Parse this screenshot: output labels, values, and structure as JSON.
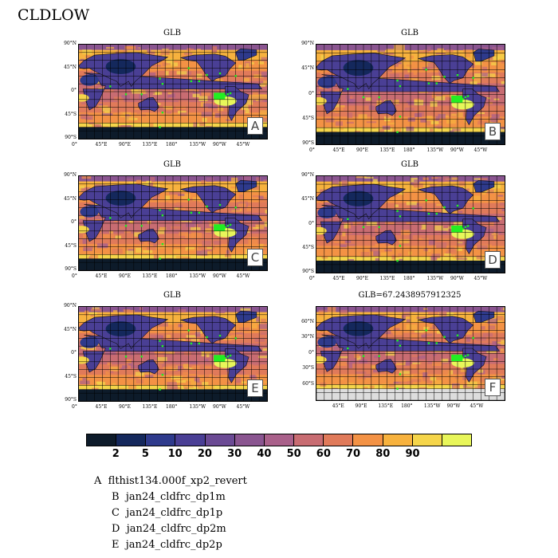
{
  "title": "CLDLOW",
  "panels": [
    {
      "id": "A",
      "title": "GLB",
      "letter": "A"
    },
    {
      "id": "B",
      "title": "GLB",
      "letter": "B"
    },
    {
      "id": "C",
      "title": "GLB",
      "letter": "C"
    },
    {
      "id": "D",
      "title": "GLB",
      "letter": "D"
    },
    {
      "id": "E",
      "title": "GLB",
      "letter": "E"
    },
    {
      "id": "F",
      "title": "GLB=67.2438957912325",
      "letter": "F"
    }
  ],
  "lat_ticks": [
    "90°N",
    "45°N",
    "0°",
    "45°S",
    "90°S"
  ],
  "lon_ticks": [
    "0°",
    "45°E",
    "90°E",
    "135°E",
    "180°",
    "135°W",
    "90°W",
    "45°W"
  ],
  "f_lat_ticks": [
    "60°N",
    "30°N",
    "0°",
    "30°S",
    "60°S"
  ],
  "f_lon_ticks": [
    "45°E",
    "90°E",
    "135°E",
    "180°",
    "135°W",
    "90°W",
    "45°W"
  ],
  "colorbar": {
    "colors": [
      "#0d1b2a",
      "#14285c",
      "#2e3a8c",
      "#4a3f95",
      "#6b4a94",
      "#8a5590",
      "#a9608a",
      "#c86c72",
      "#e07a5a",
      "#f39245",
      "#f7b23e",
      "#f5d54a",
      "#e8f65a"
    ],
    "labels": [
      "2",
      "5",
      "10",
      "20",
      "30",
      "40",
      "50",
      "60",
      "70",
      "80",
      "90"
    ]
  },
  "legend": [
    {
      "letter": "A",
      "name": "flthist134.000f_xp2_revert"
    },
    {
      "letter": "B",
      "name": "jan24_cldfrc_dp1m"
    },
    {
      "letter": "C",
      "name": "jan24_cldfrc_dp1p"
    },
    {
      "letter": "D",
      "name": "jan24_cldfrc_dp2m"
    },
    {
      "letter": "E",
      "name": "jan24_cldfrc_dp2p"
    }
  ]
}
